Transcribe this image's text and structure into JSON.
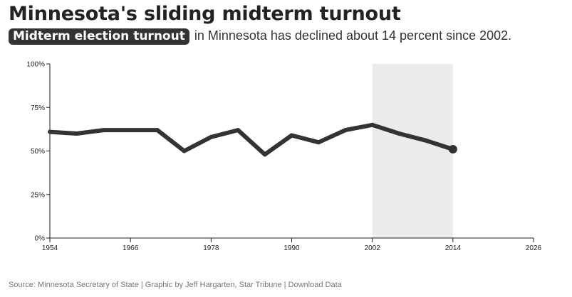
{
  "header": {
    "title": "Minnesota's sliding midterm turnout",
    "badge": "Midterm election turnout",
    "subtitle_rest": "in Minnesota has declined about 14 percent since 2002."
  },
  "footer": {
    "source_text": "Source: Minnesota Secretary of State | Graphic by Jeff Hargarten, Star Tribune | ",
    "download_label": "Download Data"
  },
  "colors": {
    "line": "#333333",
    "highlight": "#ebebeb",
    "axis": "#222222",
    "badge": "#333333"
  },
  "chart_data": {
    "type": "line",
    "title": "",
    "xlabel": "",
    "ylabel": "",
    "xlim": [
      1954,
      2026
    ],
    "ylim": [
      0,
      100
    ],
    "x_ticks": [
      1954,
      1966,
      1978,
      1990,
      2002,
      2014,
      2026
    ],
    "y_ticks": [
      0,
      25,
      50,
      75,
      100
    ],
    "y_tick_labels": [
      "0%",
      "25%",
      "50%",
      "75%",
      "100%"
    ],
    "highlight_range": [
      2002,
      2014
    ],
    "grid": false,
    "series": [
      {
        "x": [
          1954,
          1958,
          1962,
          1966,
          1970,
          1974,
          1978,
          1982,
          1986,
          1990,
          1994,
          1998,
          2002,
          2006,
          2010,
          2014
        ],
        "y": [
          61,
          60,
          62,
          62,
          62,
          50,
          58,
          62,
          48,
          59,
          55,
          62,
          65,
          60,
          56,
          51
        ]
      }
    ]
  }
}
